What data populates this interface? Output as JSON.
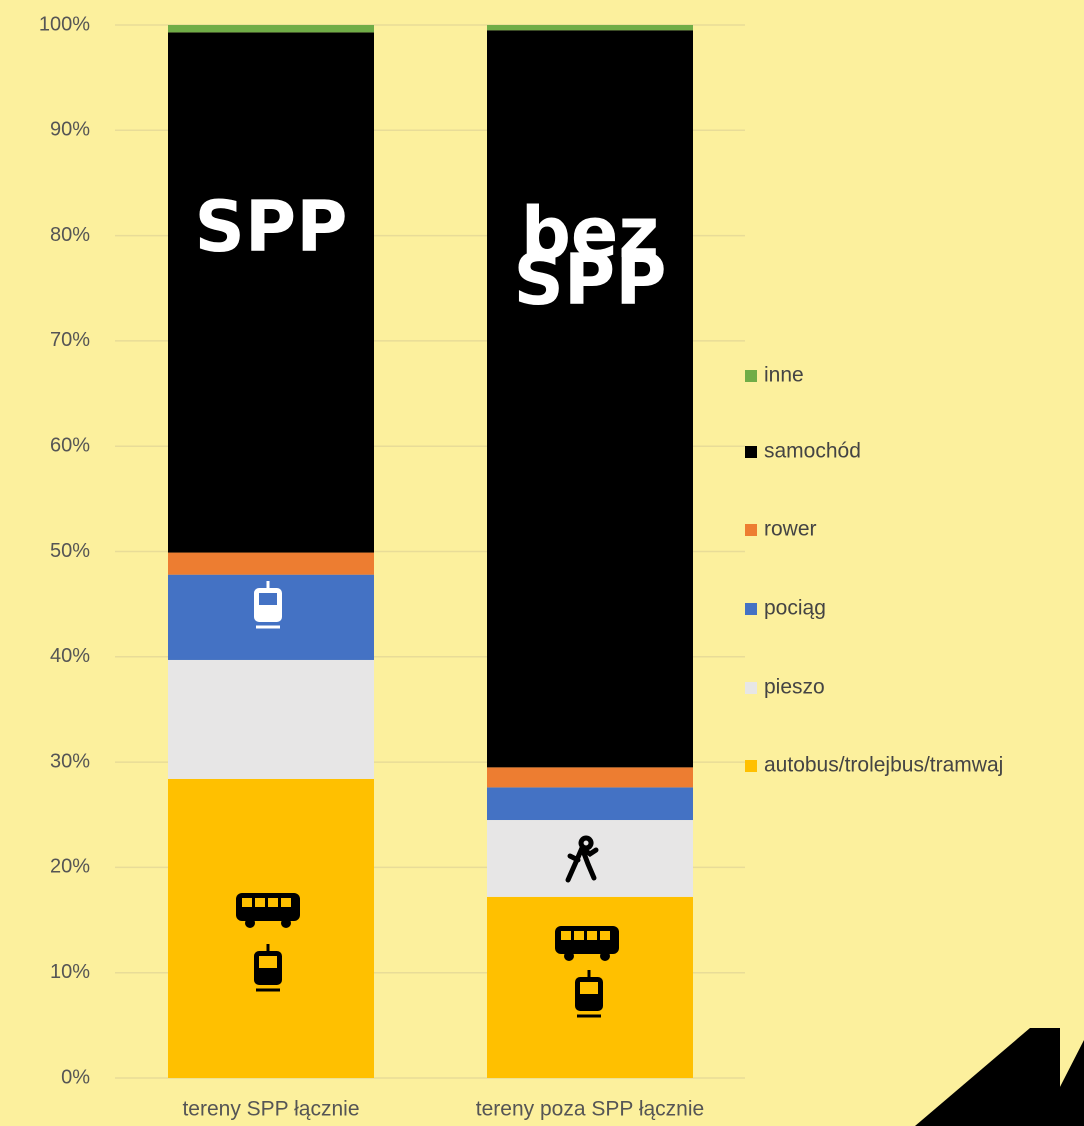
{
  "chart_data": {
    "type": "stacked_bar",
    "categories": [
      "tereny SPP łącznie",
      "tereny poza SPP łącznie"
    ],
    "series": [
      {
        "name": "autobus/trolejbus/tramwaj",
        "color": "#ffc000",
        "values": [
          28.4,
          17.2
        ]
      },
      {
        "name": "pieszo",
        "color": "#e7e6e6",
        "values": [
          11.3,
          7.3
        ]
      },
      {
        "name": "pociąg",
        "color": "#4472c4",
        "values": [
          8.1,
          3.1
        ]
      },
      {
        "name": "rower",
        "color": "#ed7d31",
        "values": [
          2.1,
          1.9
        ]
      },
      {
        "name": "samochód",
        "color": "#000000",
        "values": [
          49.4,
          70.0
        ]
      },
      {
        "name": "inne",
        "color": "#70ad47",
        "values": [
          0.7,
          0.5
        ]
      }
    ],
    "ylim": [
      0,
      100
    ],
    "yticks": [
      {
        "value": 0,
        "label": "0%"
      },
      {
        "value": 10,
        "label": "10%"
      },
      {
        "value": 20,
        "label": "20%"
      },
      {
        "value": 30,
        "label": "30%"
      },
      {
        "value": 40,
        "label": "40%"
      },
      {
        "value": 50,
        "label": "50%"
      },
      {
        "value": 60,
        "label": "60%"
      },
      {
        "value": 70,
        "label": "70%"
      },
      {
        "value": 80,
        "label": "80%"
      },
      {
        "value": 90,
        "label": "90%"
      },
      {
        "value": 100,
        "label": "100%"
      }
    ],
    "grid": true,
    "legend": "right",
    "annotations": [
      [
        "SPP"
      ],
      [
        "bez",
        "SPP"
      ]
    ]
  }
}
